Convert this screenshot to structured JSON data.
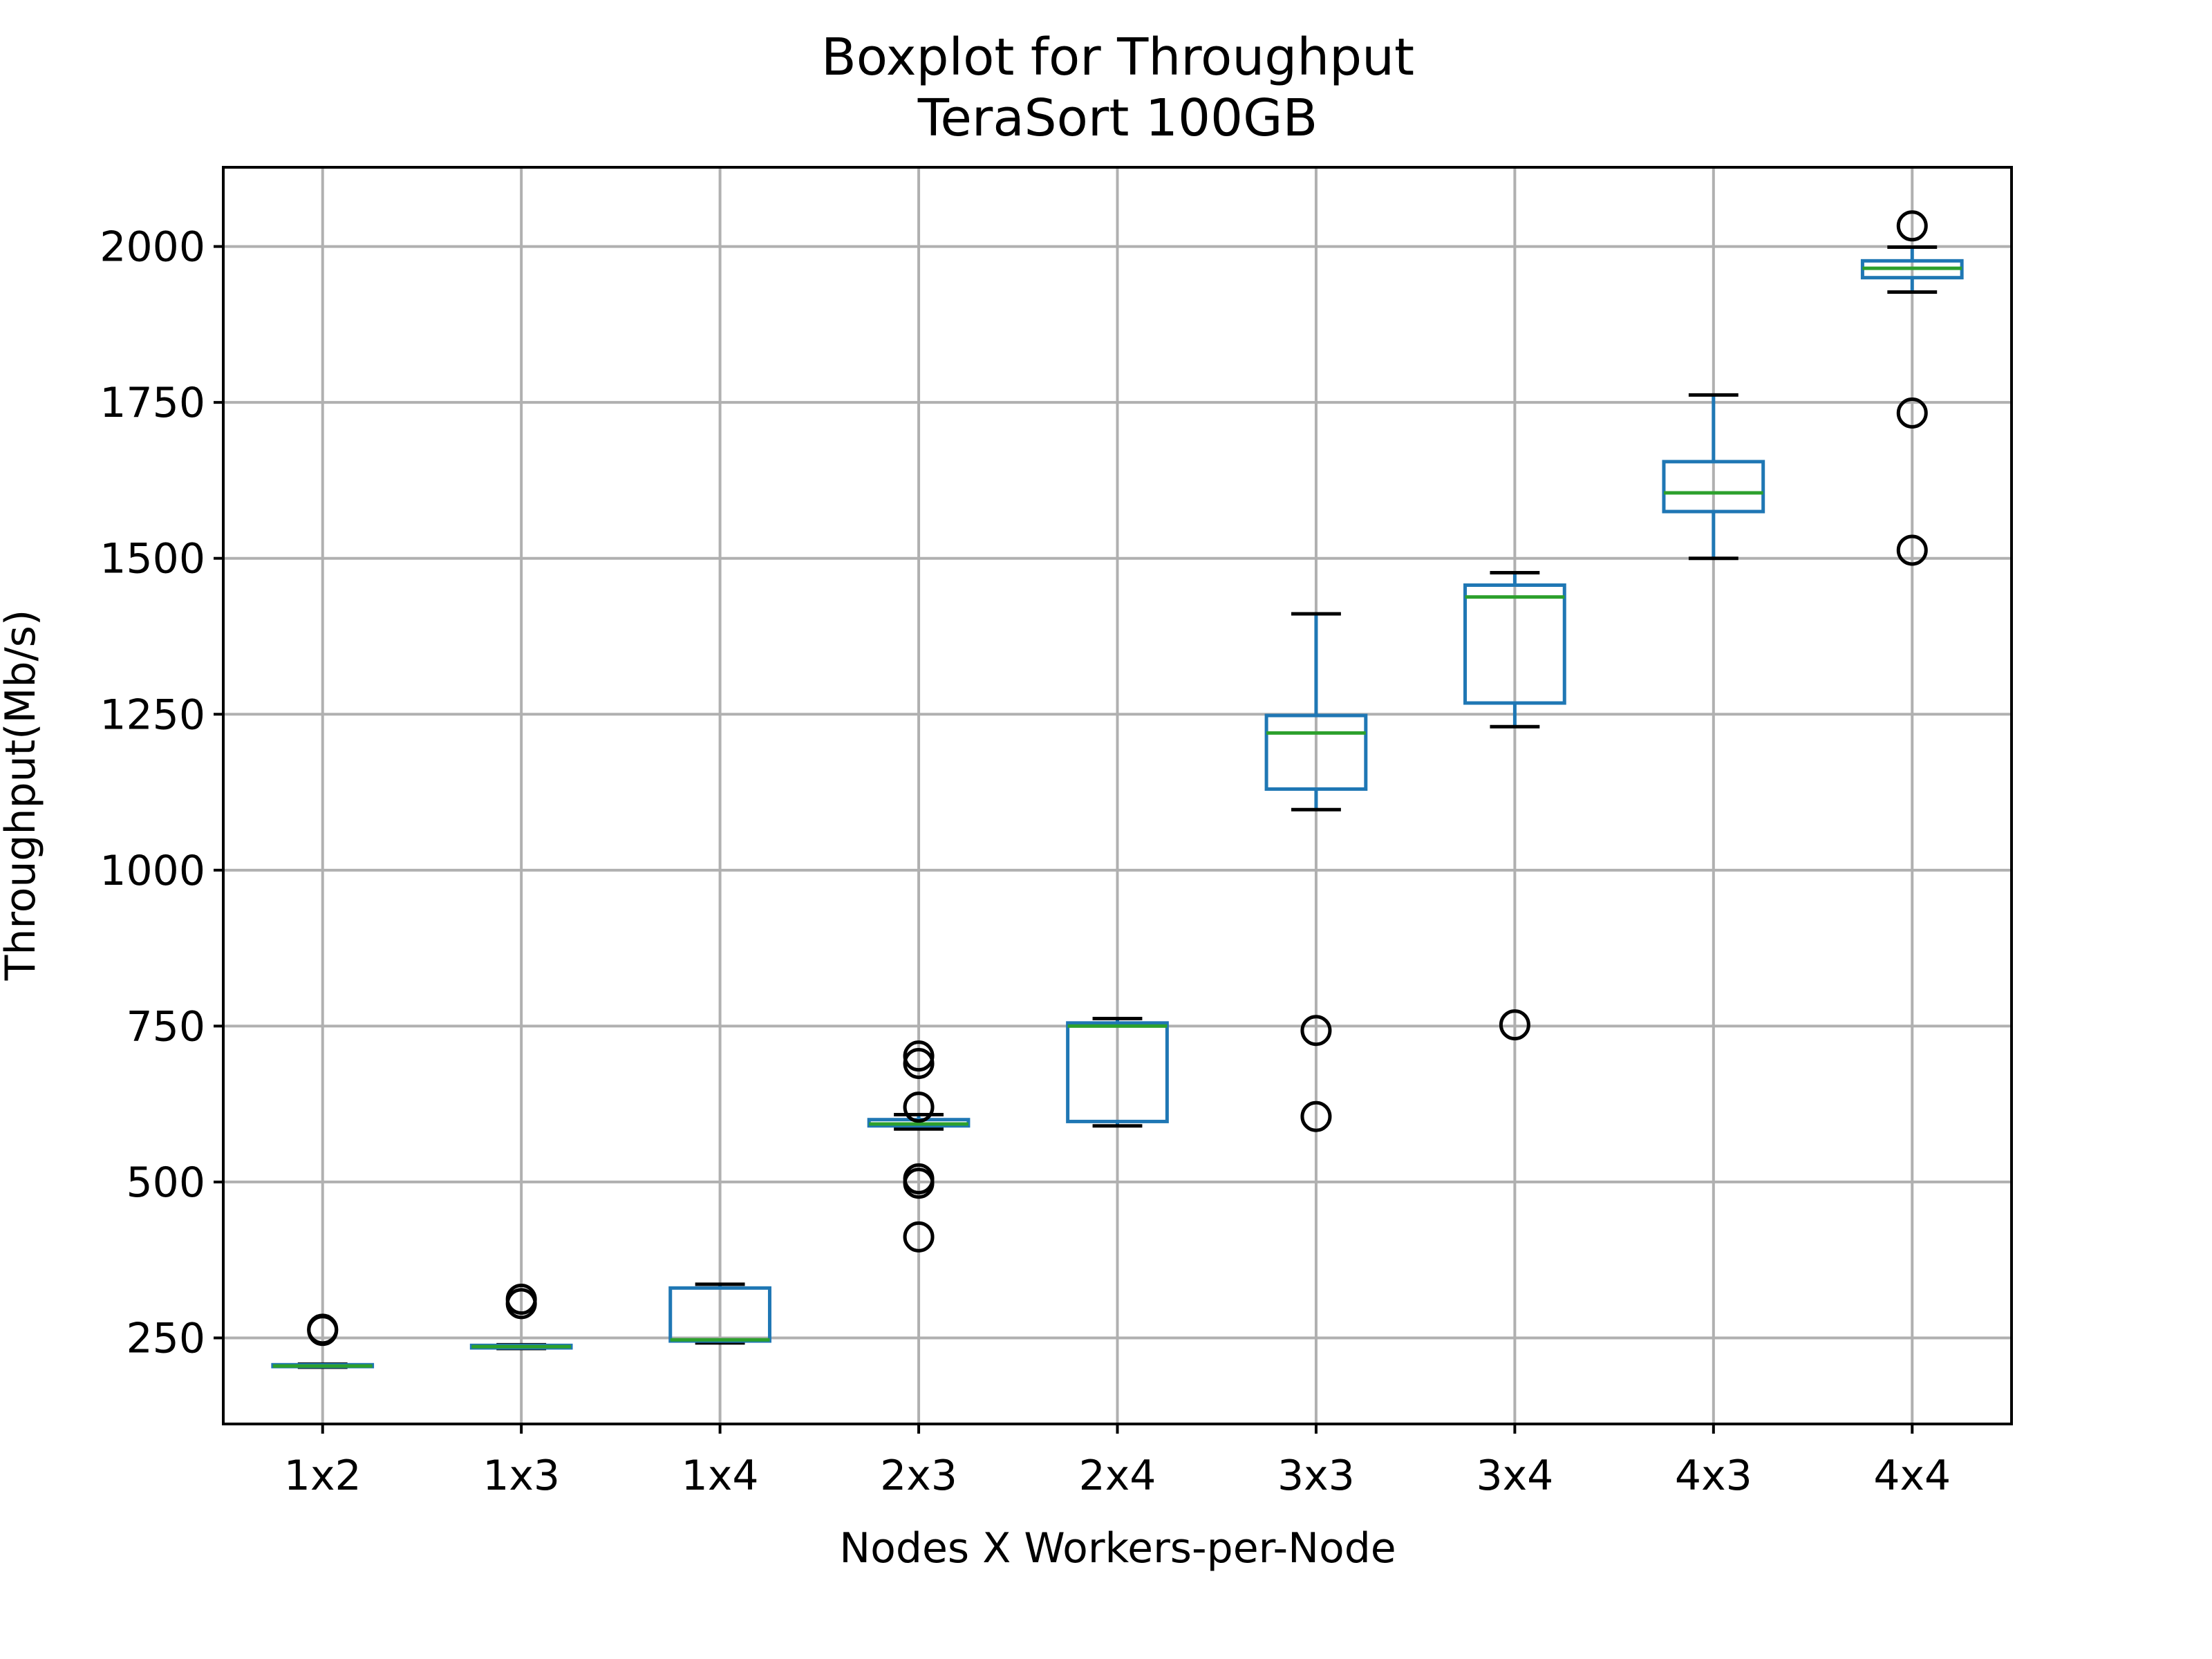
{
  "chart_data": {
    "type": "boxplot",
    "title": "Boxplot for Throughput",
    "subtitle": "TeraSort 100GB",
    "xlabel": "Nodes X Workers-per-Node",
    "ylabel": "Throughput(Mb/s)",
    "ylim": [
      112,
      2127
    ],
    "yticks": [
      250,
      500,
      750,
      1000,
      1250,
      1500,
      1750,
      2000
    ],
    "grid": true,
    "colors": {
      "box": "#1f77b4",
      "median": "#2ca02c",
      "cap": "#000000",
      "flier": "#000000",
      "grid": "#b0b0b0"
    },
    "categories": [
      "1x2",
      "1x3",
      "1x4",
      "2x3",
      "2x4",
      "3x3",
      "3x4",
      "4x3",
      "4x4"
    ],
    "boxes": [
      {
        "label": "1x2",
        "whislo": 203,
        "q1": 204,
        "med": 205,
        "q3": 207,
        "whishi": 208,
        "fliers": [
          262,
          264
        ]
      },
      {
        "label": "1x3",
        "whislo": 233,
        "q1": 234,
        "med": 236,
        "q3": 238,
        "whishi": 239,
        "fliers": [
          305,
          312
        ]
      },
      {
        "label": "1x4",
        "whislo": 242,
        "q1": 245,
        "med": 247,
        "q3": 330,
        "whishi": 336,
        "fliers": []
      },
      {
        "label": "2x3",
        "whislo": 585,
        "q1": 590,
        "med": 593,
        "q3": 600,
        "whishi": 608,
        "fliers": [
          412,
          498,
          505,
          620,
          690,
          702
        ]
      },
      {
        "label": "2x4",
        "whislo": 590,
        "q1": 597,
        "med": 750,
        "q3": 755,
        "whishi": 762,
        "fliers": []
      },
      {
        "label": "3x3",
        "whislo": 1097,
        "q1": 1130,
        "med": 1220,
        "q3": 1248,
        "whishi": 1411,
        "fliers": [
          605,
          743
        ]
      },
      {
        "label": "3x4",
        "whislo": 1230,
        "q1": 1268,
        "med": 1438,
        "q3": 1457,
        "whishi": 1477,
        "fliers": [
          752
        ]
      },
      {
        "label": "4x3",
        "whislo": 1500,
        "q1": 1575,
        "med": 1605,
        "q3": 1655,
        "whishi": 1762,
        "fliers": []
      },
      {
        "label": "4x4",
        "whislo": 1927,
        "q1": 1950,
        "med": 1965,
        "q3": 1977,
        "whishi": 1999,
        "fliers": [
          1513,
          1733,
          2033
        ]
      }
    ]
  }
}
